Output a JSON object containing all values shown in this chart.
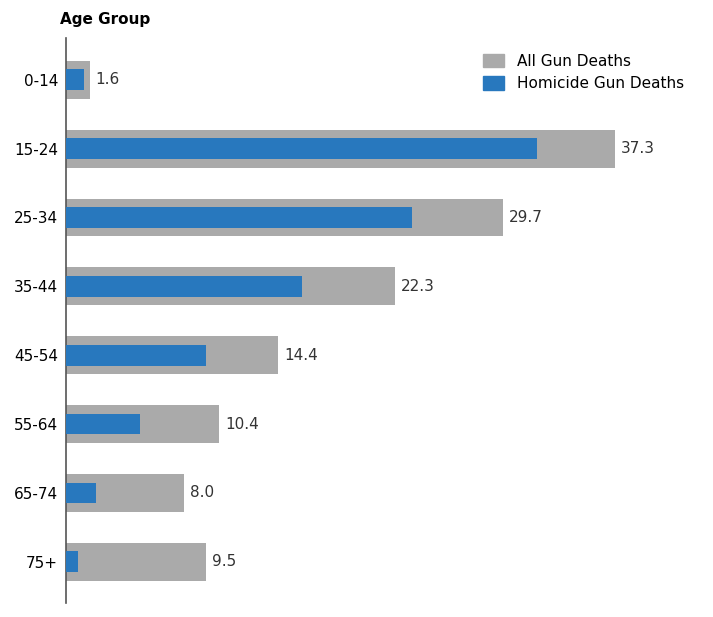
{
  "age_groups": [
    "0-14",
    "15-24",
    "25-34",
    "35-44",
    "45-54",
    "55-64",
    "65-74",
    "75+"
  ],
  "all_gun_deaths": [
    1.6,
    37.3,
    29.7,
    22.3,
    14.4,
    10.4,
    8.0,
    9.5
  ],
  "homicide_gun_deaths": [
    1.2,
    32.0,
    23.5,
    16.0,
    9.5,
    5.0,
    2.0,
    0.8
  ],
  "gray_color": "#aaaaaa",
  "blue_color": "#2878be",
  "gray_bar_height": 0.55,
  "blue_bar_height": 0.3,
  "legend_all": "All Gun Deaths",
  "legend_homicide": "Homicide Gun Deaths",
  "xlim": [
    0,
    43
  ],
  "background_color": "#ffffff",
  "label_fontsize": 11,
  "tick_fontsize": 11,
  "legend_fontsize": 11
}
